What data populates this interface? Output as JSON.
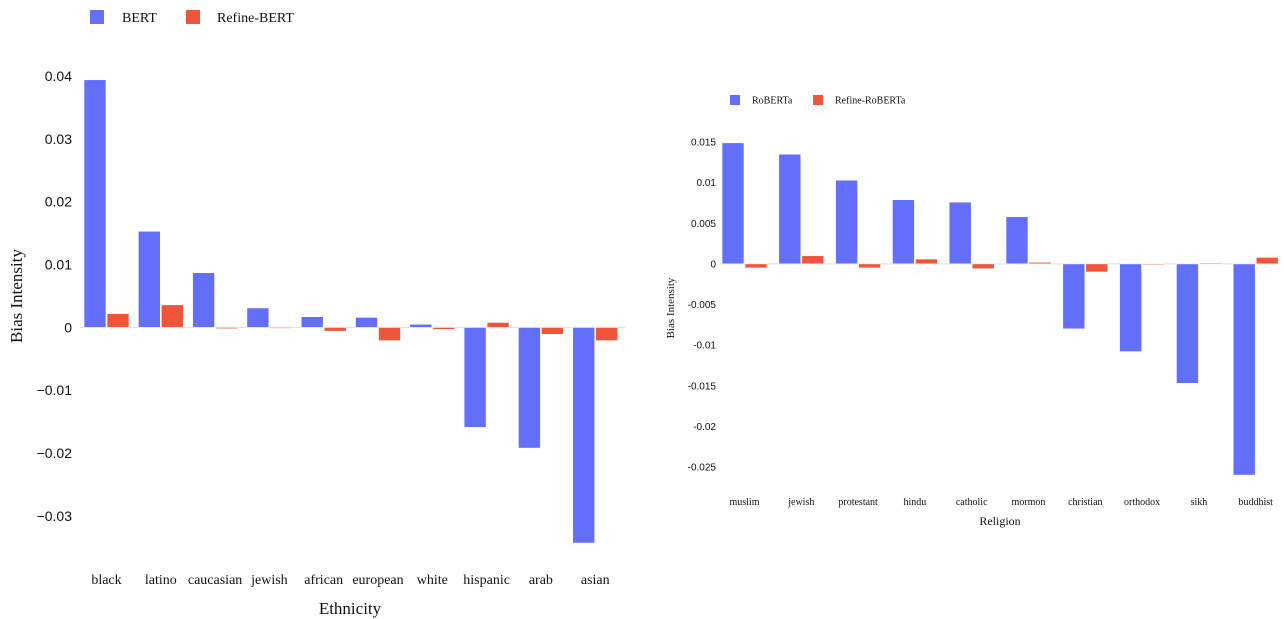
{
  "chart_data": [
    {
      "type": "bar",
      "xlabel": "Ethnicity",
      "ylabel": "Bias Intensity",
      "ylim": [
        -0.034,
        0.04
      ],
      "yticks": [
        {
          "v": 0.04,
          "label": "0.04"
        },
        {
          "v": 0.03,
          "label": "0.03"
        },
        {
          "v": 0.02,
          "label": "0.02"
        },
        {
          "v": 0.01,
          "label": "0.01"
        },
        {
          "v": 0,
          "label": "0"
        },
        {
          "v": -0.01,
          "label": "−0.01"
        },
        {
          "v": -0.02,
          "label": "−0.02"
        },
        {
          "v": -0.03,
          "label": "−0.03"
        }
      ],
      "categories": [
        "black",
        "latino",
        "caucasian",
        "jewish",
        "african",
        "european",
        "white",
        "hispanic",
        "arab",
        "asian"
      ],
      "series": [
        {
          "name": "BERT",
          "color": "#636efa",
          "values": [
            0.0394,
            0.0153,
            0.0087,
            0.0031,
            0.0017,
            0.0016,
            0.0005,
            -0.0159,
            -0.0192,
            -0.0343
          ]
        },
        {
          "name": "Refine-BERT",
          "color": "#ef553b",
          "values": [
            0.0022,
            0.0036,
            -0.0002,
            0.0,
            -0.0006,
            -0.0021,
            -0.0003,
            0.0008,
            -0.0011,
            -0.0021
          ]
        }
      ],
      "legend_position": "top-left",
      "grid": false
    },
    {
      "type": "bar",
      "xlabel": "Religion",
      "ylabel": "Bias Intensity",
      "ylim": [
        -0.026,
        0.015
      ],
      "yticks": [
        {
          "v": 0.015,
          "label": "0.015"
        },
        {
          "v": 0.01,
          "label": "0.01"
        },
        {
          "v": 0.005,
          "label": "0.005"
        },
        {
          "v": 0,
          "label": "0"
        },
        {
          "v": -0.005,
          "label": "-0.005"
        },
        {
          "v": -0.01,
          "label": "-0.01"
        },
        {
          "v": -0.015,
          "label": "-0.015"
        },
        {
          "v": -0.02,
          "label": "-0.02"
        },
        {
          "v": -0.025,
          "label": "-0.025"
        }
      ],
      "categories": [
        "muslim",
        "jewish",
        "protestant",
        "hindu",
        "catholic",
        "mormon",
        "christian",
        "orthodox",
        "sikh",
        "buddhist"
      ],
      "series": [
        {
          "name": "RoBERTa",
          "color": "#636efa",
          "values": [
            0.0149,
            0.0135,
            0.0103,
            0.0079,
            0.0076,
            0.0058,
            -0.008,
            -0.0108,
            -0.0147,
            -0.026
          ]
        },
        {
          "name": "Refine-RoBERTa",
          "color": "#ef553b",
          "values": [
            -0.0005,
            0.001,
            -0.0005,
            0.0006,
            -0.0006,
            0.0002,
            -0.001,
            -0.0001,
            0.0001,
            0.0008
          ]
        }
      ],
      "legend_position": "top-left",
      "grid": false
    }
  ]
}
